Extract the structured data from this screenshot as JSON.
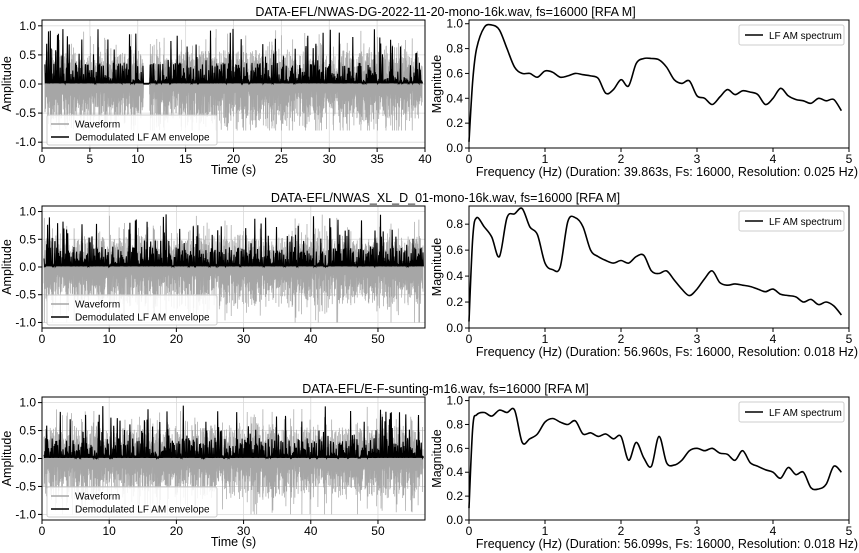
{
  "chart_data": [
    {
      "type": "line",
      "title": "DATA-EFL/NWAS-DG-2022-11-20-mono-16k.wav, fs=16000 [RFA M]",
      "waveform": {
        "xlabel": "Time (s)",
        "ylabel": "Amplitude",
        "xlim": [
          0,
          40
        ],
        "ylim": [
          -1.1,
          1.1
        ],
        "xticks": [
          0,
          5,
          10,
          15,
          20,
          25,
          30,
          35,
          40
        ],
        "yticks": [
          1.0,
          0.5,
          0.0,
          -0.5,
          -1.0
        ],
        "grid": true,
        "legend_position": "bottom-left",
        "series": [
          {
            "name": "Waveform",
            "color": "#a6a6a6",
            "style": "dense-signal",
            "peak_pos": 1.0,
            "peak_neg": -0.8
          },
          {
            "name": "Demodulated LF AM envelope",
            "color": "#000000",
            "style": "dense-envelope",
            "peak": 1.0
          }
        ],
        "pauses": [
          [
            10.6,
            11.2
          ]
        ]
      },
      "spectrum": {
        "xlabel": "Frequency (Hz) (Duration: 39.863s, Fs: 16000, Resolution: 0.025 Hz)",
        "ylabel": "Magnitude",
        "xlim": [
          0,
          5
        ],
        "ylim": [
          0,
          1.03
        ],
        "xticks": [
          0,
          1,
          2,
          3,
          4,
          5
        ],
        "yticks": [
          0.0,
          0.2,
          0.4,
          0.6,
          0.8,
          1.0
        ],
        "grid": false,
        "legend_position": "top-right",
        "series": [
          {
            "name": "LF AM spectrum",
            "color": "#000000",
            "x": [
              0,
              0.05,
              0.1,
              0.2,
              0.3,
              0.4,
              0.5,
              0.6,
              0.7,
              0.8,
              0.9,
              1.0,
              1.1,
              1.2,
              1.3,
              1.4,
              1.5,
              1.6,
              1.7,
              1.8,
              1.9,
              2.0,
              2.1,
              2.2,
              2.3,
              2.4,
              2.5,
              2.6,
              2.7,
              2.8,
              2.9,
              3.0,
              3.1,
              3.2,
              3.3,
              3.4,
              3.5,
              3.6,
              3.7,
              3.8,
              3.9,
              4.0,
              4.1,
              4.2,
              4.3,
              4.4,
              4.5,
              4.6,
              4.7,
              4.8,
              4.9
            ],
            "y": [
              0.05,
              0.55,
              0.8,
              0.97,
              0.99,
              0.95,
              0.8,
              0.65,
              0.6,
              0.6,
              0.57,
              0.62,
              0.61,
              0.57,
              0.58,
              0.6,
              0.59,
              0.58,
              0.56,
              0.44,
              0.47,
              0.55,
              0.5,
              0.68,
              0.72,
              0.72,
              0.71,
              0.65,
              0.55,
              0.52,
              0.54,
              0.42,
              0.4,
              0.35,
              0.41,
              0.47,
              0.43,
              0.46,
              0.45,
              0.43,
              0.35,
              0.4,
              0.48,
              0.42,
              0.39,
              0.38,
              0.36,
              0.4,
              0.38,
              0.39,
              0.3
            ]
          }
        ]
      }
    },
    {
      "type": "line",
      "title": "DATA-EFL/NWAS_XL_D_01-mono-16k.wav, fs=16000 [RFA M]",
      "waveform": {
        "xlabel": "",
        "ylabel": "Amplitude",
        "xlim": [
          0,
          57
        ],
        "ylim": [
          -1.1,
          1.1
        ],
        "xticks": [
          0,
          10,
          20,
          30,
          40,
          50
        ],
        "yticks": [
          1.0,
          0.5,
          0.0,
          -0.5,
          -1.0
        ],
        "grid": true,
        "legend_position": "bottom-left",
        "series": [
          {
            "name": "Waveform",
            "color": "#a6a6a6",
            "style": "dense-signal",
            "peak_pos": 1.0,
            "peak_neg": -1.0
          },
          {
            "name": "Demodulated LF AM envelope",
            "color": "#000000",
            "style": "dense-envelope",
            "peak": 1.0
          }
        ],
        "pauses": []
      },
      "spectrum": {
        "xlabel": "Frequency (Hz) (Duration: 56.960s, Fs: 16000, Resolution: 0.018 Hz)",
        "ylabel": "Magnitude",
        "xlim": [
          0,
          5
        ],
        "ylim": [
          0,
          0.94
        ],
        "xticks": [
          0,
          1,
          2,
          3,
          4,
          5
        ],
        "yticks": [
          0.0,
          0.2,
          0.4,
          0.6,
          0.8
        ],
        "grid": false,
        "legend_position": "top-right",
        "series": [
          {
            "name": "LF AM spectrum",
            "color": "#000000",
            "x": [
              0,
              0.05,
              0.1,
              0.2,
              0.3,
              0.4,
              0.5,
              0.6,
              0.7,
              0.8,
              0.9,
              1.0,
              1.1,
              1.2,
              1.3,
              1.4,
              1.5,
              1.6,
              1.7,
              1.8,
              1.9,
              2.0,
              2.1,
              2.2,
              2.3,
              2.4,
              2.5,
              2.6,
              2.7,
              2.8,
              2.9,
              3.0,
              3.1,
              3.2,
              3.3,
              3.4,
              3.5,
              3.6,
              3.7,
              3.8,
              3.9,
              4.0,
              4.1,
              4.2,
              4.3,
              4.4,
              4.5,
              4.6,
              4.7,
              4.8,
              4.9
            ],
            "y": [
              0.05,
              0.7,
              0.85,
              0.78,
              0.7,
              0.55,
              0.85,
              0.88,
              0.92,
              0.78,
              0.72,
              0.5,
              0.45,
              0.47,
              0.82,
              0.85,
              0.78,
              0.6,
              0.55,
              0.52,
              0.5,
              0.52,
              0.5,
              0.55,
              0.56,
              0.44,
              0.42,
              0.44,
              0.37,
              0.3,
              0.25,
              0.3,
              0.38,
              0.44,
              0.35,
              0.33,
              0.34,
              0.33,
              0.32,
              0.3,
              0.28,
              0.3,
              0.26,
              0.25,
              0.24,
              0.2,
              0.22,
              0.18,
              0.2,
              0.17,
              0.1
            ]
          }
        ]
      }
    },
    {
      "type": "line",
      "title": "DATA-EFL/E-F-sunting-m16.wav, fs=16000 [RFA M]",
      "waveform": {
        "xlabel": "Time (s)",
        "ylabel": "Amplitude",
        "xlim": [
          0,
          57
        ],
        "ylim": [
          -1.1,
          1.1
        ],
        "xticks": [
          0,
          10,
          20,
          30,
          40,
          50
        ],
        "yticks": [
          1.0,
          0.5,
          0.0,
          -0.5,
          -1.0
        ],
        "grid": true,
        "legend_position": "bottom-left",
        "series": [
          {
            "name": "Waveform",
            "color": "#a6a6a6",
            "style": "dense-signal",
            "peak_pos": 1.0,
            "peak_neg": -1.0
          },
          {
            "name": "Demodulated LF AM envelope",
            "color": "#000000",
            "style": "dense-envelope",
            "peak": 1.0
          }
        ],
        "pauses": []
      },
      "spectrum": {
        "xlabel": "Frequency (Hz) (Duration: 56.099s, Fs: 16000, Resolution: 0.018 Hz)",
        "ylabel": "Magnitude",
        "xlim": [
          0,
          5
        ],
        "ylim": [
          0,
          1.03
        ],
        "xticks": [
          0,
          1,
          2,
          3,
          4,
          5
        ],
        "yticks": [
          0.0,
          0.2,
          0.4,
          0.6,
          0.8,
          1.0
        ],
        "grid": false,
        "legend_position": "top-right",
        "series": [
          {
            "name": "LF AM spectrum",
            "color": "#000000",
            "x": [
              0,
              0.05,
              0.1,
              0.2,
              0.3,
              0.4,
              0.5,
              0.6,
              0.7,
              0.8,
              0.9,
              1.0,
              1.1,
              1.2,
              1.3,
              1.4,
              1.5,
              1.6,
              1.7,
              1.8,
              1.9,
              2.0,
              2.1,
              2.2,
              2.3,
              2.4,
              2.5,
              2.6,
              2.7,
              2.8,
              2.9,
              3.0,
              3.1,
              3.2,
              3.3,
              3.4,
              3.5,
              3.6,
              3.7,
              3.8,
              3.9,
              4.0,
              4.1,
              4.2,
              4.3,
              4.4,
              4.5,
              4.6,
              4.7,
              4.8,
              4.9
            ],
            "y": [
              0.1,
              0.78,
              0.88,
              0.9,
              0.87,
              0.92,
              0.9,
              0.92,
              0.65,
              0.68,
              0.72,
              0.82,
              0.85,
              0.82,
              0.8,
              0.83,
              0.72,
              0.73,
              0.7,
              0.72,
              0.68,
              0.7,
              0.5,
              0.65,
              0.52,
              0.45,
              0.7,
              0.48,
              0.46,
              0.5,
              0.58,
              0.6,
              0.58,
              0.6,
              0.56,
              0.55,
              0.5,
              0.58,
              0.48,
              0.45,
              0.42,
              0.4,
              0.35,
              0.44,
              0.38,
              0.4,
              0.27,
              0.26,
              0.3,
              0.45,
              0.4
            ]
          }
        ]
      }
    }
  ]
}
